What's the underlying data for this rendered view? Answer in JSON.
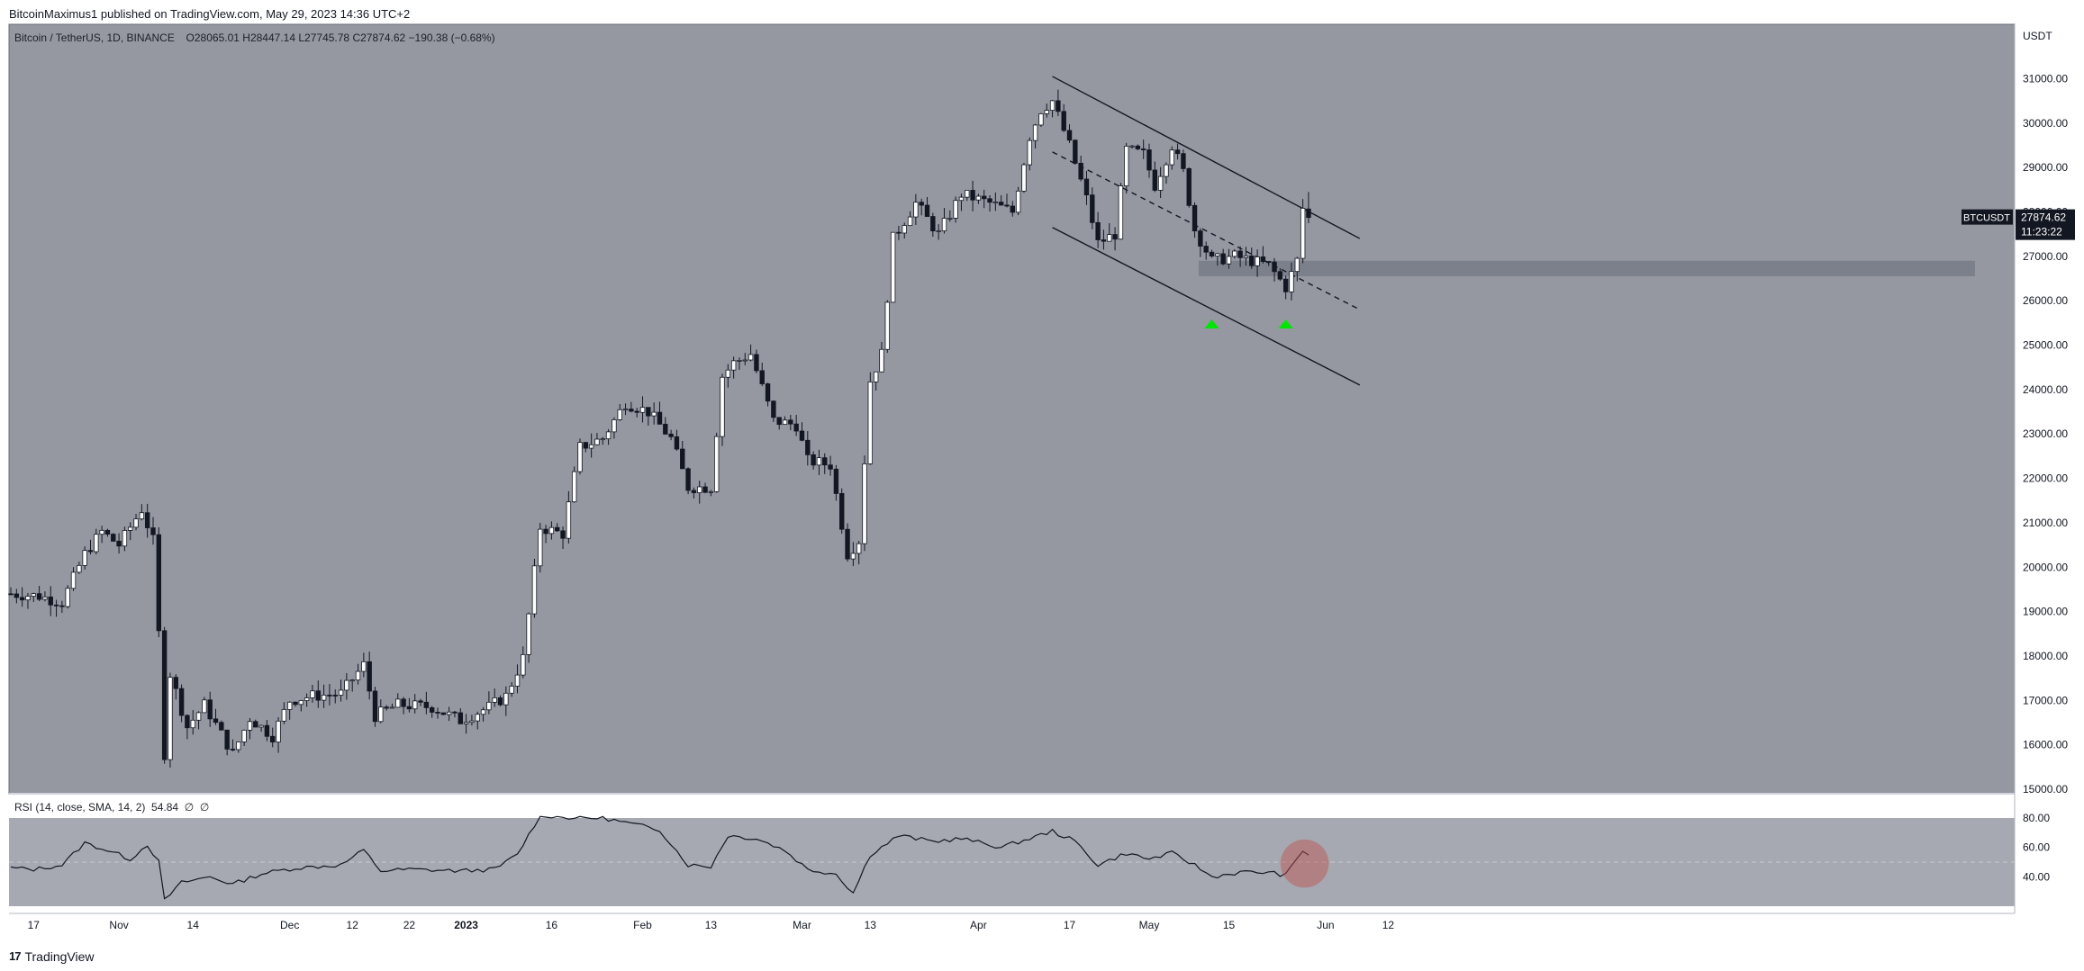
{
  "header": {
    "publisher_line": "BitcoinMaximus1 published on TradingView.com, May 29, 2023 14:36 UTC+2"
  },
  "legend": {
    "symbol": "Bitcoin / TetherUS, 1D, BINANCE",
    "open_label": "O",
    "open": "28065.01",
    "high_label": "H",
    "high": "28447.14",
    "low_label": "L",
    "low": "27745.78",
    "close_label": "C",
    "close": "27874.62",
    "change": "−190.38 (−0.68%)"
  },
  "rsi_legend": "RSI (14, close, SMA, 14, 2)  54.84  ∅  ∅",
  "price_axis": {
    "currency": "USDT",
    "ticks": [
      "31000.00",
      "30000.00",
      "29000.00",
      "28000.00",
      "27000.00",
      "26000.00",
      "25000.00",
      "24000.00",
      "23000.00",
      "22000.00",
      "21000.00",
      "20000.00",
      "19000.00",
      "18000.00",
      "17000.00",
      "16000.00",
      "15000.00"
    ]
  },
  "rsi_axis": {
    "ticks": [
      "80.00",
      "60.00",
      "40.00"
    ]
  },
  "time_axis": {
    "ticks": [
      "17",
      "Nov",
      "14",
      "Dec",
      "12",
      "22",
      "2023",
      "16",
      "Feb",
      "13",
      "Mar",
      "13",
      "Apr",
      "17",
      "May",
      "15",
      "Jun",
      "12"
    ]
  },
  "last_price": {
    "ticker": "BTCUSDT",
    "price": "27874.62",
    "countdown": "11:23:22"
  },
  "footer": {
    "logo": "17",
    "brand": "TradingView"
  },
  "colors": {
    "pane_bg": "#9598a1",
    "up_candle": "#ffffff",
    "down_candle": "#131722",
    "support_zone": "#787b86",
    "arrow": "#00e600",
    "rsi_circle": "#c0504d"
  },
  "chart_data": {
    "type": "candlestick",
    "title": "Bitcoin / TetherUS, 1D, BINANCE",
    "ylim": [
      15000,
      31700
    ],
    "rsi_ylim": [
      20,
      80
    ],
    "support_zone": [
      26550,
      26900
    ],
    "channel": {
      "upper": [
        [
          "2023-04-14",
          31050
        ],
        [
          "2023-06-07",
          27400
        ]
      ],
      "middle": [
        [
          "2023-04-14",
          29350
        ],
        [
          "2023-06-07",
          25800
        ]
      ],
      "lower": [
        [
          "2023-04-14",
          27650
        ],
        [
          "2023-06-07",
          24100
        ]
      ]
    },
    "rsi_circle_date": "2023-05-28",
    "arrow_dates": [
      "2023-05-12",
      "2023-05-25"
    ],
    "ohlc_anchors": [
      [
        "2022-10-13",
        19400
      ],
      [
        "2022-10-18",
        19350
      ],
      [
        "2022-10-22",
        19200
      ],
      [
        "2022-10-26",
        20300
      ],
      [
        "2022-10-29",
        20800
      ],
      [
        "2022-11-01",
        20500
      ],
      [
        "2022-11-05",
        21300
      ],
      [
        "2022-11-07",
        20600
      ],
      [
        "2022-11-08",
        18500
      ],
      [
        "2022-11-09",
        15800
      ],
      [
        "2022-11-10",
        17600
      ],
      [
        "2022-11-13",
        16400
      ],
      [
        "2022-11-16",
        16900
      ],
      [
        "2022-11-21",
        15800
      ],
      [
        "2022-11-24",
        16600
      ],
      [
        "2022-11-28",
        16200
      ],
      [
        "2022-12-01",
        17000
      ],
      [
        "2022-12-05",
        17100
      ],
      [
        "2022-12-10",
        17150
      ],
      [
        "2022-12-14",
        17800
      ],
      [
        "2022-12-16",
        16650
      ],
      [
        "2022-12-20",
        16900
      ],
      [
        "2022-12-26",
        16850
      ],
      [
        "2022-12-31",
        16550
      ],
      [
        "2023-01-05",
        16850
      ],
      [
        "2023-01-08",
        17100
      ],
      [
        "2023-01-11",
        17950
      ],
      [
        "2023-01-13",
        19900
      ],
      [
        "2023-01-14",
        20900
      ],
      [
        "2023-01-18",
        20750
      ],
      [
        "2023-01-21",
        22700
      ],
      [
        "2023-01-25",
        22900
      ],
      [
        "2023-01-29",
        23700
      ],
      [
        "2023-02-02",
        23500
      ],
      [
        "2023-02-06",
        22900
      ],
      [
        "2023-02-09",
        21800
      ],
      [
        "2023-02-13",
        21800
      ],
      [
        "2023-02-15",
        24300
      ],
      [
        "2023-02-17",
        24600
      ],
      [
        "2023-02-20",
        24800
      ],
      [
        "2023-02-24",
        23300
      ],
      [
        "2023-02-28",
        23200
      ],
      [
        "2023-03-02",
        22400
      ],
      [
        "2023-03-06",
        22300
      ],
      [
        "2023-03-09",
        20300
      ],
      [
        "2023-03-11",
        20600
      ],
      [
        "2023-03-13",
        24200
      ],
      [
        "2023-03-15",
        24800
      ],
      [
        "2023-03-17",
        27400
      ],
      [
        "2023-03-21",
        28200
      ],
      [
        "2023-03-25",
        27500
      ],
      [
        "2023-03-29",
        28400
      ],
      [
        "2023-04-03",
        28200
      ],
      [
        "2023-04-07",
        28000
      ],
      [
        "2023-04-10",
        29700
      ],
      [
        "2023-04-12",
        30300
      ],
      [
        "2023-04-14",
        30500
      ],
      [
        "2023-04-17",
        29500
      ],
      [
        "2023-04-20",
        28300
      ],
      [
        "2023-04-22",
        27300
      ],
      [
        "2023-04-25",
        27500
      ],
      [
        "2023-04-27",
        29400
      ],
      [
        "2023-04-30",
        29300
      ],
      [
        "2023-05-02",
        28600
      ],
      [
        "2023-05-05",
        29500
      ],
      [
        "2023-05-07",
        28900
      ],
      [
        "2023-05-09",
        27600
      ],
      [
        "2023-05-12",
        26900
      ],
      [
        "2023-05-16",
        27000
      ],
      [
        "2023-05-19",
        26900
      ],
      [
        "2023-05-22",
        26800
      ],
      [
        "2023-05-25",
        26300
      ],
      [
        "2023-05-27",
        26900
      ],
      [
        "2023-05-28",
        28080
      ],
      [
        "2023-05-29",
        27875
      ]
    ],
    "rsi_anchors": [
      [
        "2022-10-13",
        46
      ],
      [
        "2022-10-17",
        45
      ],
      [
        "2022-10-22",
        48
      ],
      [
        "2022-10-26",
        63
      ],
      [
        "2022-10-30",
        58
      ],
      [
        "2022-11-03",
        52
      ],
      [
        "2022-11-06",
        62
      ],
      [
        "2022-11-08",
        50
      ],
      [
        "2022-11-09",
        24
      ],
      [
        "2022-11-12",
        36
      ],
      [
        "2022-11-17",
        40
      ],
      [
        "2022-11-21",
        35
      ],
      [
        "2022-11-26",
        42
      ],
      [
        "2022-12-02",
        46
      ],
      [
        "2022-12-10",
        48
      ],
      [
        "2022-12-14",
        58
      ],
      [
        "2022-12-17",
        44
      ],
      [
        "2022-12-22",
        45
      ],
      [
        "2022-12-31",
        44
      ],
      [
        "2023-01-06",
        45
      ],
      [
        "2023-01-10",
        55
      ],
      [
        "2023-01-14",
        82
      ],
      [
        "2023-01-20",
        80
      ],
      [
        "2023-01-25",
        80
      ],
      [
        "2023-01-30",
        76
      ],
      [
        "2023-02-04",
        72
      ],
      [
        "2023-02-09",
        48
      ],
      [
        "2023-02-13",
        47
      ],
      [
        "2023-02-16",
        68
      ],
      [
        "2023-02-21",
        66
      ],
      [
        "2023-02-26",
        58
      ],
      [
        "2023-03-02",
        45
      ],
      [
        "2023-03-07",
        42
      ],
      [
        "2023-03-10",
        29
      ],
      [
        "2023-03-13",
        55
      ],
      [
        "2023-03-18",
        68
      ],
      [
        "2023-03-24",
        64
      ],
      [
        "2023-03-29",
        66
      ],
      [
        "2023-04-05",
        60
      ],
      [
        "2023-04-10",
        66
      ],
      [
        "2023-04-14",
        71
      ],
      [
        "2023-04-18",
        64
      ],
      [
        "2023-04-22",
        48
      ],
      [
        "2023-04-27",
        56
      ],
      [
        "2023-05-01",
        52
      ],
      [
        "2023-05-05",
        56
      ],
      [
        "2023-05-09",
        48
      ],
      [
        "2023-05-12",
        40
      ],
      [
        "2023-05-17",
        43
      ],
      [
        "2023-05-22",
        43
      ],
      [
        "2023-05-25",
        41
      ],
      [
        "2023-05-28",
        58
      ],
      [
        "2023-05-29",
        55
      ]
    ]
  }
}
